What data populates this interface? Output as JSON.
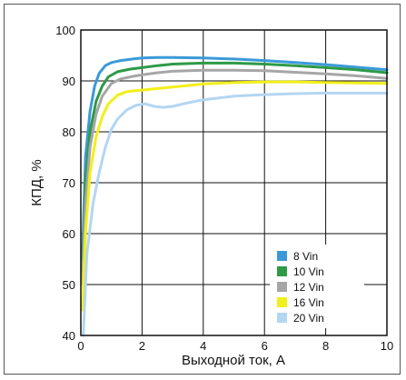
{
  "chart_data": {
    "type": "line",
    "title": "",
    "xlabel": "Выходной ток, А",
    "ylabel": "КПД, %",
    "xlim": [
      0,
      10
    ],
    "ylim": [
      40,
      100
    ],
    "xticks": [
      "0",
      "2",
      "4",
      "6",
      "8",
      "10"
    ],
    "yticks": [
      "40",
      "50",
      "60",
      "70",
      "80",
      "90",
      "100"
    ],
    "grid": true,
    "legend_position": "bottom-right",
    "series": [
      {
        "name": "8 Vin",
        "color": "#3a9ad9",
        "x": [
          0.05,
          0.15,
          0.3,
          0.45,
          0.6,
          0.8,
          1.0,
          1.3,
          1.7,
          2.0,
          2.5,
          3,
          4,
          5,
          6,
          7,
          8,
          9,
          10
        ],
        "y": [
          55,
          75,
          84,
          89,
          91.5,
          93,
          93.6,
          94.0,
          94.3,
          94.5,
          94.6,
          94.6,
          94.5,
          94.3,
          94.0,
          93.6,
          93.2,
          92.7,
          92.2
        ]
      },
      {
        "name": "10 Vin",
        "color": "#2e9a47",
        "x": [
          0.05,
          0.15,
          0.3,
          0.5,
          0.7,
          0.9,
          1.2,
          1.6,
          2.0,
          2.5,
          3,
          4,
          5,
          6,
          7,
          8,
          9,
          10
        ],
        "y": [
          52,
          70,
          80,
          86,
          89,
          90.8,
          91.8,
          92.3,
          92.6,
          93.0,
          93.3,
          93.5,
          93.5,
          93.3,
          93.0,
          92.6,
          92.2,
          91.6
        ]
      },
      {
        "name": "12 Vin",
        "color": "#a6a6a6",
        "x": [
          0.05,
          0.15,
          0.3,
          0.5,
          0.7,
          1.0,
          1.3,
          1.7,
          2.0,
          2.5,
          3,
          4,
          5,
          6,
          7,
          8,
          9,
          10
        ],
        "y": [
          50,
          66,
          77,
          83.5,
          87,
          89.5,
          90.4,
          90.9,
          91.2,
          91.6,
          91.9,
          92.1,
          92.1,
          92.0,
          91.7,
          91.4,
          91.0,
          90.5
        ]
      },
      {
        "name": "16 Vin",
        "color": "#f2ef1a",
        "x": [
          0.05,
          0.15,
          0.3,
          0.5,
          0.7,
          0.9,
          1.2,
          1.5,
          2.0,
          2.5,
          3,
          4,
          5,
          6,
          7,
          8,
          9,
          10
        ],
        "y": [
          45,
          60,
          72,
          79,
          83,
          85.5,
          87.2,
          87.9,
          88.2,
          88.5,
          88.8,
          89.4,
          89.7,
          89.8,
          89.8,
          89.7,
          89.6,
          89.5
        ]
      },
      {
        "name": "20 Vin",
        "color": "#b3d6f2",
        "x": [
          0.08,
          0.2,
          0.4,
          0.6,
          0.8,
          1.0,
          1.2,
          1.5,
          1.8,
          2.1,
          2.4,
          2.7,
          3.0,
          3.5,
          4,
          5,
          6,
          7,
          8,
          9,
          10
        ],
        "y": [
          40,
          56,
          66,
          72,
          77,
          80.5,
          82.5,
          84.3,
          85.2,
          85.5,
          85.0,
          84.8,
          85.0,
          85.7,
          86.3,
          87.0,
          87.3,
          87.5,
          87.6,
          87.6,
          87.6
        ]
      }
    ]
  }
}
